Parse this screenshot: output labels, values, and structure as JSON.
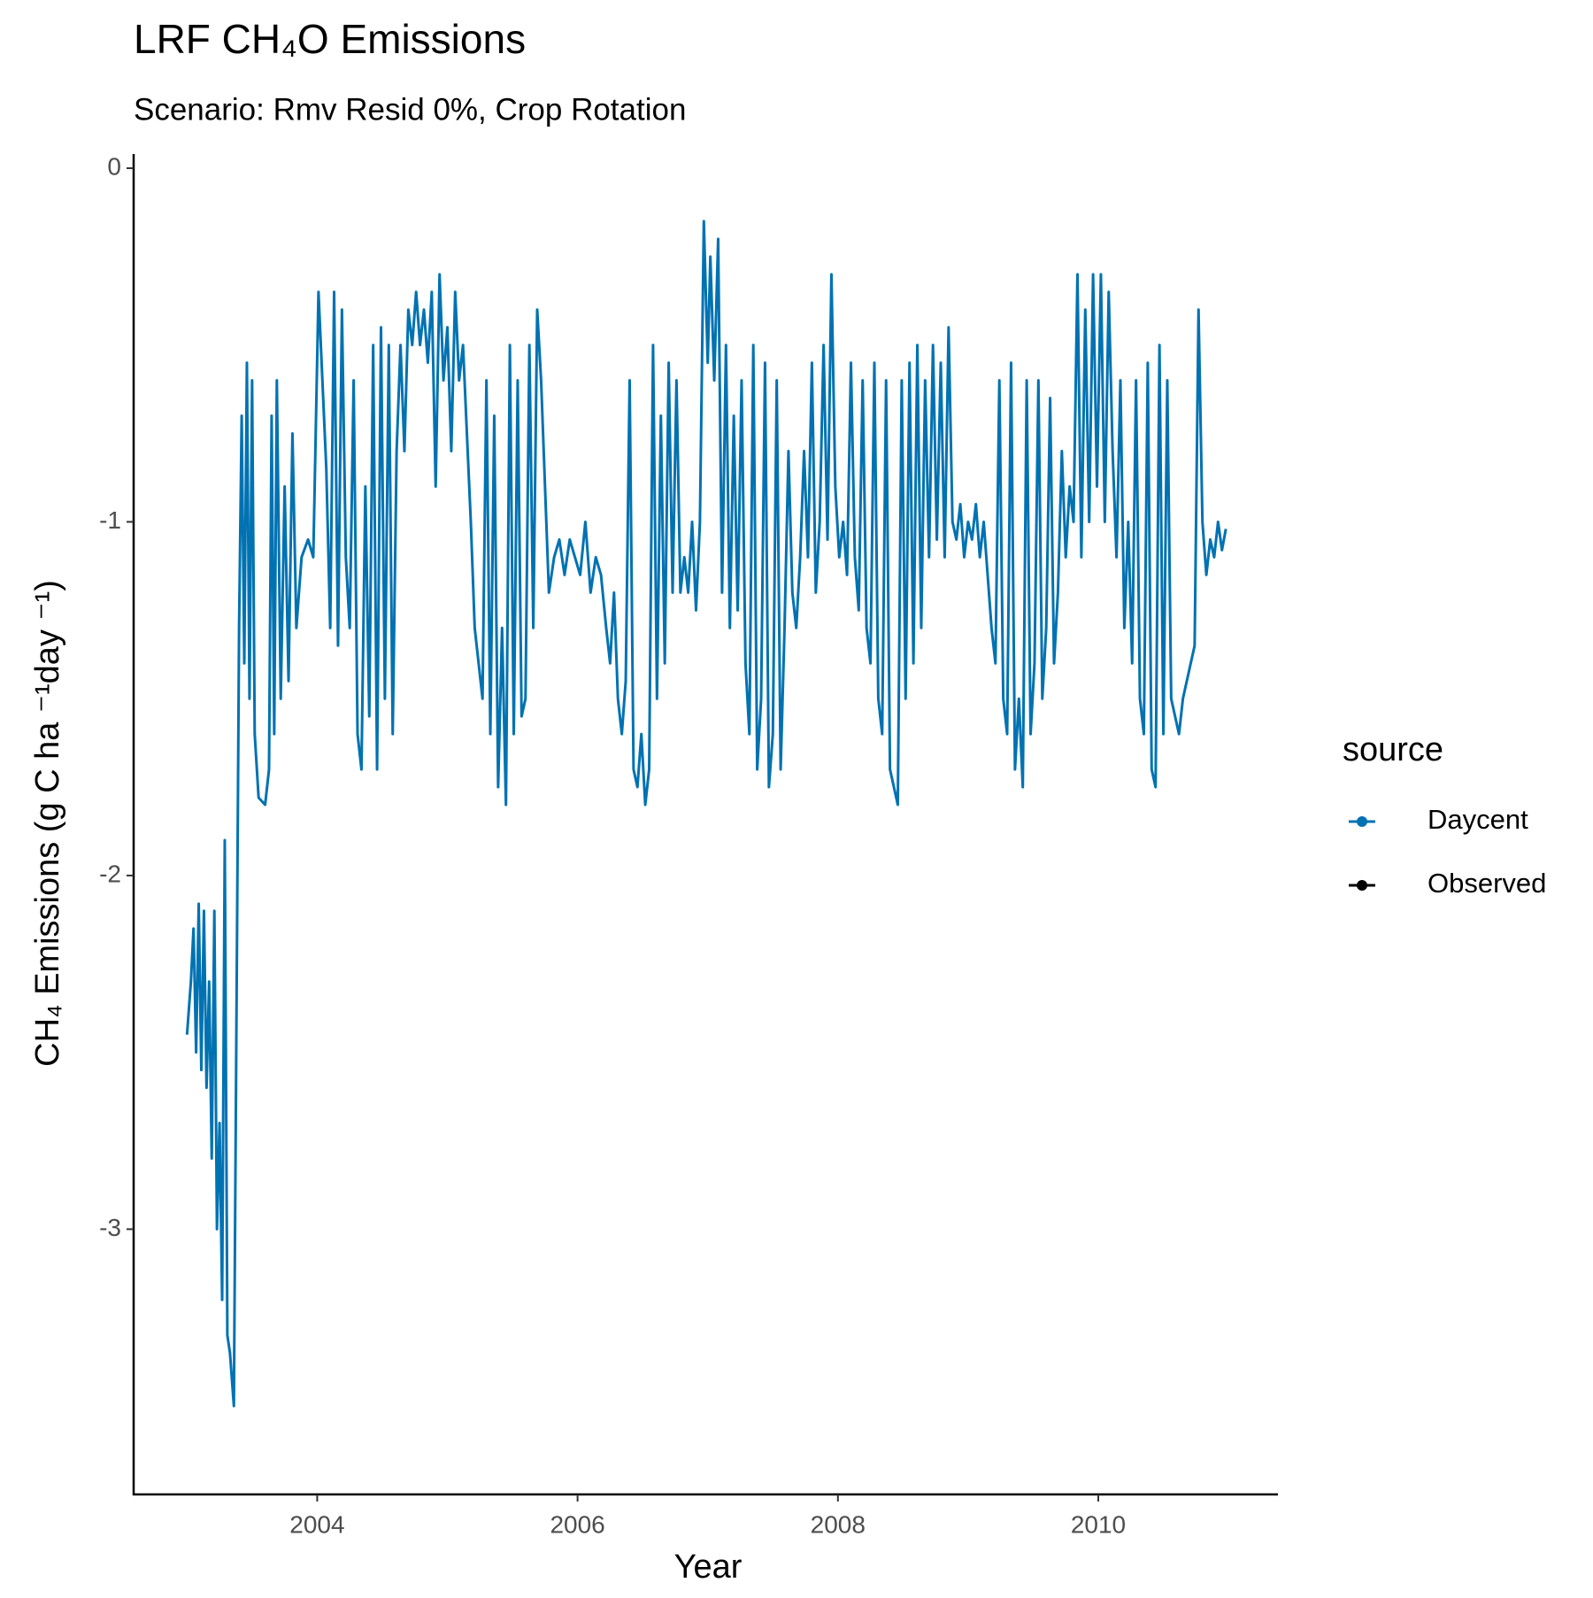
{
  "chart_data": {
    "type": "line",
    "title": "LRF CH₄O Emissions",
    "subtitle": "Scenario: Rmv Resid 0%, Crop Rotation",
    "x_label": "Year",
    "y_label": "CH₄ Emissions (g C ha ⁻¹day ⁻¹)",
    "legend_title": "source",
    "legend_position": "right",
    "grid": false,
    "xlim": [
      2002.59,
      2011.38
    ],
    "ylim": [
      -3.75,
      0.04
    ],
    "xticks": [
      2004,
      2006,
      2008,
      2010
    ],
    "yticks": [
      -3,
      -2,
      -1,
      0
    ],
    "series": [
      {
        "name": "Daycent",
        "color": "#0072B2",
        "x": [
          2003.0,
          2003.03,
          2003.05,
          2003.07,
          2003.09,
          2003.11,
          2003.13,
          2003.15,
          2003.17,
          2003.19,
          2003.21,
          2003.23,
          2003.25,
          2003.27,
          2003.29,
          2003.31,
          2003.33,
          2003.36,
          2003.38,
          2003.4,
          2003.42,
          2003.44,
          2003.46,
          2003.48,
          2003.5,
          2003.52,
          2003.55,
          2003.6,
          2003.63,
          2003.65,
          2003.67,
          2003.69,
          2003.72,
          2003.75,
          2003.78,
          2003.81,
          2003.84,
          2003.88,
          2003.93,
          2003.97,
          2004.01,
          2004.04,
          2004.07,
          2004.1,
          2004.13,
          2004.16,
          2004.19,
          2004.22,
          2004.25,
          2004.28,
          2004.31,
          2004.34,
          2004.37,
          2004.4,
          2004.43,
          2004.46,
          2004.49,
          2004.52,
          2004.55,
          2004.58,
          2004.61,
          2004.64,
          2004.67,
          2004.7,
          2004.73,
          2004.76,
          2004.79,
          2004.82,
          2004.85,
          2004.88,
          2004.91,
          2004.94,
          2004.97,
          2005.0,
          2005.03,
          2005.06,
          2005.09,
          2005.12,
          2005.15,
          2005.18,
          2005.21,
          2005.24,
          2005.27,
          2005.3,
          2005.33,
          2005.36,
          2005.39,
          2005.42,
          2005.45,
          2005.48,
          2005.51,
          2005.54,
          2005.57,
          2005.6,
          2005.63,
          2005.66,
          2005.69,
          2005.72,
          2005.75,
          2005.78,
          2005.82,
          2005.86,
          2005.9,
          2005.94,
          2005.98,
          2006.02,
          2006.06,
          2006.1,
          2006.14,
          2006.18,
          2006.22,
          2006.25,
          2006.28,
          2006.31,
          2006.34,
          2006.37,
          2006.4,
          2006.43,
          2006.46,
          2006.49,
          2006.52,
          2006.55,
          2006.58,
          2006.61,
          2006.64,
          2006.67,
          2006.7,
          2006.73,
          2006.76,
          2006.79,
          2006.82,
          2006.85,
          2006.88,
          2006.91,
          2006.94,
          2006.97,
          2007.0,
          2007.02,
          2007.05,
          2007.08,
          2007.11,
          2007.14,
          2007.17,
          2007.2,
          2007.23,
          2007.26,
          2007.29,
          2007.32,
          2007.35,
          2007.38,
          2007.41,
          2007.44,
          2007.47,
          2007.5,
          2007.53,
          2007.56,
          2007.59,
          2007.62,
          2007.65,
          2007.68,
          2007.71,
          2007.74,
          2007.77,
          2007.8,
          2007.83,
          2007.86,
          2007.89,
          2007.92,
          2007.95,
          2007.98,
          2008.01,
          2008.04,
          2008.07,
          2008.1,
          2008.13,
          2008.16,
          2008.19,
          2008.22,
          2008.25,
          2008.28,
          2008.31,
          2008.34,
          2008.37,
          2008.4,
          2008.43,
          2008.46,
          2008.49,
          2008.52,
          2008.55,
          2008.58,
          2008.61,
          2008.64,
          2008.67,
          2008.7,
          2008.73,
          2008.76,
          2008.79,
          2008.82,
          2008.85,
          2008.88,
          2008.91,
          2008.94,
          2008.97,
          2009.0,
          2009.03,
          2009.06,
          2009.09,
          2009.12,
          2009.15,
          2009.18,
          2009.21,
          2009.24,
          2009.27,
          2009.3,
          2009.33,
          2009.36,
          2009.39,
          2009.42,
          2009.45,
          2009.48,
          2009.51,
          2009.54,
          2009.57,
          2009.6,
          2009.63,
          2009.66,
          2009.69,
          2009.72,
          2009.75,
          2009.78,
          2009.81,
          2009.84,
          2009.87,
          2009.9,
          2009.93,
          2009.96,
          2009.99,
          2010.02,
          2010.05,
          2010.08,
          2010.11,
          2010.14,
          2010.17,
          2010.2,
          2010.23,
          2010.26,
          2010.29,
          2010.32,
          2010.35,
          2010.38,
          2010.41,
          2010.44,
          2010.47,
          2010.5,
          2010.53,
          2010.56,
          2010.59,
          2010.62,
          2010.65,
          2010.68,
          2010.71,
          2010.74,
          2010.77,
          2010.8,
          2010.83,
          2010.86,
          2010.89,
          2010.92,
          2010.95,
          2010.98
        ],
        "values": [
          -2.45,
          -2.3,
          -2.15,
          -2.5,
          -2.08,
          -2.55,
          -2.1,
          -2.6,
          -2.3,
          -2.8,
          -2.1,
          -3.0,
          -2.7,
          -3.2,
          -1.9,
          -3.3,
          -3.35,
          -3.5,
          -2.4,
          -1.3,
          -0.7,
          -1.4,
          -0.55,
          -1.5,
          -0.6,
          -1.6,
          -1.78,
          -1.8,
          -1.7,
          -0.7,
          -1.6,
          -0.6,
          -1.5,
          -0.9,
          -1.45,
          -0.75,
          -1.3,
          -1.1,
          -1.05,
          -1.1,
          -0.35,
          -0.6,
          -0.85,
          -1.3,
          -0.35,
          -1.35,
          -0.4,
          -1.1,
          -1.3,
          -0.6,
          -1.6,
          -1.7,
          -0.9,
          -1.55,
          -0.5,
          -1.7,
          -0.45,
          -1.5,
          -0.5,
          -1.6,
          -0.8,
          -0.5,
          -0.8,
          -0.4,
          -0.5,
          -0.35,
          -0.5,
          -0.4,
          -0.55,
          -0.35,
          -0.9,
          -0.3,
          -0.6,
          -0.45,
          -0.8,
          -0.35,
          -0.6,
          -0.5,
          -0.75,
          -1.0,
          -1.3,
          -1.4,
          -1.5,
          -0.6,
          -1.6,
          -0.7,
          -1.75,
          -1.3,
          -1.8,
          -0.5,
          -1.6,
          -0.6,
          -1.55,
          -1.5,
          -0.5,
          -1.3,
          -0.4,
          -0.6,
          -0.9,
          -1.2,
          -1.1,
          -1.05,
          -1.15,
          -1.05,
          -1.1,
          -1.15,
          -1.0,
          -1.2,
          -1.1,
          -1.15,
          -1.3,
          -1.4,
          -1.2,
          -1.5,
          -1.6,
          -1.45,
          -0.6,
          -1.7,
          -1.75,
          -1.6,
          -1.8,
          -1.7,
          -0.5,
          -1.5,
          -0.7,
          -1.4,
          -0.55,
          -1.2,
          -0.6,
          -1.2,
          -1.1,
          -1.2,
          -1.0,
          -1.25,
          -1.0,
          -0.15,
          -0.55,
          -0.25,
          -0.6,
          -0.2,
          -1.2,
          -0.5,
          -1.3,
          -0.7,
          -1.25,
          -0.6,
          -1.4,
          -1.6,
          -0.5,
          -1.7,
          -1.5,
          -0.55,
          -1.75,
          -1.6,
          -0.6,
          -1.7,
          -1.3,
          -0.8,
          -1.2,
          -1.3,
          -1.1,
          -0.8,
          -1.1,
          -0.55,
          -1.2,
          -1.0,
          -0.5,
          -1.05,
          -0.3,
          -0.9,
          -1.1,
          -1.0,
          -1.15,
          -0.55,
          -1.1,
          -1.25,
          -0.6,
          -1.3,
          -1.4,
          -0.55,
          -1.5,
          -1.6,
          -0.6,
          -1.7,
          -1.75,
          -1.8,
          -0.6,
          -1.5,
          -0.55,
          -1.4,
          -0.5,
          -1.3,
          -0.6,
          -1.1,
          -0.5,
          -1.05,
          -0.55,
          -1.1,
          -0.45,
          -1.0,
          -1.05,
          -0.95,
          -1.1,
          -1.0,
          -1.05,
          -0.95,
          -1.1,
          -1.0,
          -1.15,
          -1.3,
          -1.4,
          -0.6,
          -1.5,
          -1.6,
          -0.55,
          -1.7,
          -1.5,
          -1.75,
          -0.6,
          -1.6,
          -1.4,
          -0.6,
          -1.5,
          -1.3,
          -0.65,
          -1.4,
          -1.2,
          -0.8,
          -1.1,
          -0.9,
          -1.0,
          -0.3,
          -1.1,
          -0.4,
          -1.0,
          -0.3,
          -0.9,
          -0.3,
          -1.0,
          -0.35,
          -0.8,
          -1.1,
          -0.6,
          -1.3,
          -1.0,
          -1.4,
          -0.6,
          -1.5,
          -1.6,
          -0.55,
          -1.7,
          -1.75,
          -0.5,
          -1.6,
          -0.6,
          -1.5,
          -1.55,
          -1.6,
          -1.5,
          -1.45,
          -1.4,
          -1.35,
          -0.4,
          -1.0,
          -1.15,
          -1.05,
          -1.1,
          -1.0,
          -1.08,
          -1.02
        ]
      },
      {
        "name": "Observed",
        "color": "#000000",
        "x": [],
        "values": []
      }
    ]
  }
}
